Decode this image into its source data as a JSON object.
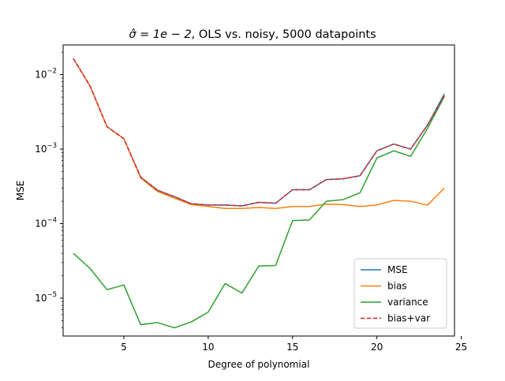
{
  "chart_data": {
    "type": "line",
    "title": {
      "sigma_symbol": "σ̂",
      "sigma_value": " = 1e − 2",
      "rest": ", OLS vs. noisy, 5000 datapoints"
    },
    "xlabel": "Degree of polynomial",
    "ylabel": "MSE",
    "xlim": [
      1.4,
      24.6
    ],
    "ylim": [
      3.1e-06,
      0.025
    ],
    "yscale": "log",
    "x_ticks": [
      5,
      10,
      15,
      20,
      25
    ],
    "y_ticks": [
      {
        "value": 1e-05,
        "base": "10",
        "exp": "−5"
      },
      {
        "value": 0.0001,
        "base": "10",
        "exp": "−4"
      },
      {
        "value": 0.001,
        "base": "10",
        "exp": "−3"
      },
      {
        "value": 0.01,
        "base": "10",
        "exp": "−2"
      }
    ],
    "grid": false,
    "legend_position": "lower right",
    "x": [
      2,
      3,
      4,
      5,
      6,
      7,
      8,
      9,
      10,
      11,
      12,
      13,
      14,
      15,
      16,
      17,
      18,
      19,
      20,
      21,
      22,
      23,
      24
    ],
    "series": [
      {
        "name": "MSE",
        "color": "#1f77b4",
        "dash": "solid",
        "values": [
          0.0165,
          0.007,
          0.002,
          0.00138,
          0.00042,
          0.00028,
          0.00023,
          0.000185,
          0.000178,
          0.000178,
          0.000173,
          0.000193,
          0.000188,
          0.000285,
          0.000285,
          0.00039,
          0.0004,
          0.00044,
          0.00095,
          0.00117,
          0.001,
          0.0021,
          0.0055
        ]
      },
      {
        "name": "bias",
        "color": "#ff7f0e",
        "dash": "solid",
        "values": [
          0.0165,
          0.007,
          0.002,
          0.00138,
          0.00041,
          0.00027,
          0.00022,
          0.00018,
          0.00017,
          0.00016,
          0.00016,
          0.000165,
          0.00016,
          0.00017,
          0.00017,
          0.000183,
          0.00018,
          0.00017,
          0.000178,
          0.000205,
          0.0002,
          0.000177,
          0.0003
        ]
      },
      {
        "name": "variance",
        "color": "#2ca02c",
        "dash": "solid",
        "values": [
          4e-05,
          2.5e-05,
          1.3e-05,
          1.5e-05,
          4.4e-06,
          4.7e-06,
          4e-06,
          4.8e-06,
          6.5e-06,
          1.57e-05,
          1.17e-05,
          2.7e-05,
          2.75e-05,
          0.00011,
          0.000112,
          0.0002,
          0.00021,
          0.00026,
          0.00076,
          0.00095,
          0.0008,
          0.0019,
          0.0051
        ]
      },
      {
        "name": "bias+var",
        "color": "#d62728",
        "dash": "dashed",
        "values": [
          0.0165,
          0.007,
          0.002,
          0.00138,
          0.00042,
          0.00028,
          0.00023,
          0.000185,
          0.000178,
          0.000178,
          0.000173,
          0.000193,
          0.000188,
          0.000285,
          0.000285,
          0.00039,
          0.0004,
          0.00044,
          0.00095,
          0.00117,
          0.001,
          0.0021,
          0.0052
        ]
      }
    ]
  }
}
